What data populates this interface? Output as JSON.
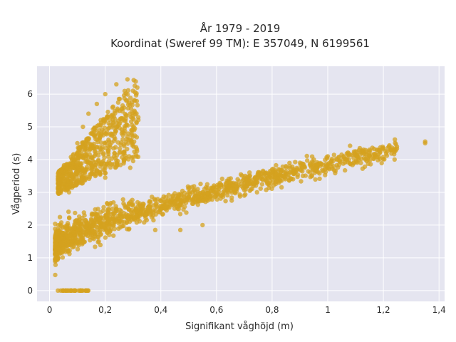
{
  "chart_data": {
    "type": "scatter",
    "title_line1": "År 1979 - 2019",
    "title_line2": "Koordinat (Sweref 99 TM): E 357049, N 6199561",
    "xlabel": "Signifikant våghöjd (m)",
    "ylabel": "Vågperiod (s)",
    "xlim": [
      -0.045,
      1.42
    ],
    "ylim": [
      -0.33,
      6.85
    ],
    "x_ticks": [
      0,
      0.2,
      0.4,
      0.6,
      0.8,
      1.0,
      1.2,
      1.4
    ],
    "x_tick_labels": [
      "0",
      "0,2",
      "0,4",
      "0,6",
      "0,8",
      "1",
      "1,2",
      "1,4"
    ],
    "y_ticks": [
      0,
      1,
      2,
      3,
      4,
      5,
      6
    ],
    "y_tick_labels": [
      "0",
      "1",
      "2",
      "3",
      "4",
      "5",
      "6"
    ],
    "grid": true,
    "legend": "none",
    "colors": {
      "marker": "#D4A21F",
      "plot_background": "#E5E5F0",
      "grid": "#ffffff"
    },
    "clusters": [
      {
        "name": "wind-sea-band",
        "x_min": 0.02,
        "x_max": 1.35,
        "y_at_xmin": 1.35,
        "y_at_xmax": 4.5,
        "spread": 0.18
      },
      {
        "name": "steep-upper-plume",
        "x_min": 0.03,
        "x_max": 0.32,
        "y_min": 2.6,
        "y_max": 6.5
      },
      {
        "name": "zero-period-row",
        "x_min": 0.02,
        "x_max": 0.14,
        "y": 0.0
      }
    ],
    "points": [
      {
        "x": 0.03,
        "y": 0.0
      },
      {
        "x": 0.05,
        "y": 0.0
      },
      {
        "x": 0.07,
        "y": 0.0
      },
      {
        "x": 0.09,
        "y": 0.0
      },
      {
        "x": 0.11,
        "y": 0.0
      },
      {
        "x": 0.13,
        "y": 0.0
      },
      {
        "x": 0.03,
        "y": 1.3
      },
      {
        "x": 0.05,
        "y": 1.4
      },
      {
        "x": 0.08,
        "y": 1.5
      },
      {
        "x": 0.1,
        "y": 1.55
      },
      {
        "x": 0.12,
        "y": 1.6
      },
      {
        "x": 0.15,
        "y": 1.7
      },
      {
        "x": 0.18,
        "y": 1.8
      },
      {
        "x": 0.2,
        "y": 1.9
      },
      {
        "x": 0.23,
        "y": 2.0
      },
      {
        "x": 0.26,
        "y": 2.1
      },
      {
        "x": 0.3,
        "y": 2.25
      },
      {
        "x": 0.35,
        "y": 2.4
      },
      {
        "x": 0.4,
        "y": 2.55
      },
      {
        "x": 0.45,
        "y": 2.7
      },
      {
        "x": 0.5,
        "y": 2.85
      },
      {
        "x": 0.55,
        "y": 3.0
      },
      {
        "x": 0.6,
        "y": 3.15
      },
      {
        "x": 0.65,
        "y": 3.3
      },
      {
        "x": 0.7,
        "y": 3.45
      },
      {
        "x": 0.75,
        "y": 3.55
      },
      {
        "x": 0.8,
        "y": 3.7
      },
      {
        "x": 0.85,
        "y": 3.8
      },
      {
        "x": 0.9,
        "y": 3.9
      },
      {
        "x": 0.95,
        "y": 4.0
      },
      {
        "x": 1.0,
        "y": 4.1
      },
      {
        "x": 1.05,
        "y": 4.15
      },
      {
        "x": 1.1,
        "y": 4.25
      },
      {
        "x": 1.15,
        "y": 4.3
      },
      {
        "x": 1.2,
        "y": 4.35
      },
      {
        "x": 1.22,
        "y": 4.4
      },
      {
        "x": 1.35,
        "y": 4.55
      },
      {
        "x": 1.35,
        "y": 4.5
      },
      {
        "x": 0.07,
        "y": 3.0
      },
      {
        "x": 0.08,
        "y": 3.5
      },
      {
        "x": 0.09,
        "y": 4.0
      },
      {
        "x": 0.1,
        "y": 4.5
      },
      {
        "x": 0.12,
        "y": 5.0
      },
      {
        "x": 0.14,
        "y": 5.4
      },
      {
        "x": 0.17,
        "y": 5.7
      },
      {
        "x": 0.2,
        "y": 6.0
      },
      {
        "x": 0.24,
        "y": 6.3
      },
      {
        "x": 0.28,
        "y": 6.45
      },
      {
        "x": 0.3,
        "y": 6.1
      },
      {
        "x": 0.29,
        "y": 3.75
      },
      {
        "x": 0.2,
        "y": 3.45
      },
      {
        "x": 0.38,
        "y": 1.85
      },
      {
        "x": 0.47,
        "y": 1.85
      },
      {
        "x": 0.55,
        "y": 2.0
      },
      {
        "x": 0.7,
        "y": 2.9
      },
      {
        "x": 0.72,
        "y": 3.05
      }
    ]
  }
}
